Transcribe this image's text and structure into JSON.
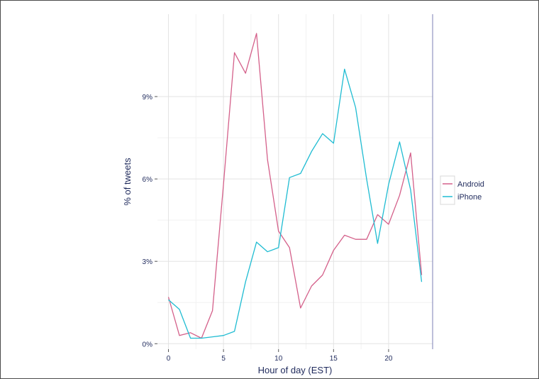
{
  "chart_data": {
    "type": "line",
    "xlabel": "Hour of day (EST)",
    "ylabel": "% of tweets",
    "xlim": [
      -1,
      24
    ],
    "ylim": [
      -0.2,
      12.0
    ],
    "x_ticks": [
      0,
      5,
      10,
      15,
      20
    ],
    "y_ticks": [
      0,
      3,
      6,
      9
    ],
    "y_tick_labels": [
      "0%",
      "3%",
      "6%",
      "9%"
    ],
    "grid": true,
    "legend_position": "right",
    "x": [
      0,
      1,
      2,
      3,
      4,
      5,
      6,
      7,
      8,
      9,
      10,
      11,
      12,
      13,
      14,
      15,
      16,
      17,
      18,
      19,
      20,
      21,
      22,
      23
    ],
    "series": [
      {
        "name": "Android",
        "color": "#d4608a",
        "values": [
          1.7,
          0.3,
          0.4,
          0.2,
          1.2,
          5.8,
          10.6,
          9.85,
          11.3,
          6.7,
          4.1,
          3.5,
          1.3,
          2.1,
          2.5,
          3.4,
          3.95,
          3.8,
          3.8,
          4.7,
          4.35,
          5.4,
          6.95,
          2.5
        ]
      },
      {
        "name": "iPhone",
        "color": "#1fbcd2",
        "values": [
          1.6,
          1.25,
          0.2,
          0.2,
          0.25,
          0.3,
          0.45,
          2.25,
          3.7,
          3.35,
          3.5,
          6.05,
          6.2,
          7.0,
          7.65,
          7.3,
          10.0,
          8.6,
          6.0,
          3.65,
          5.8,
          7.35,
          5.6,
          2.25
        ]
      }
    ]
  }
}
